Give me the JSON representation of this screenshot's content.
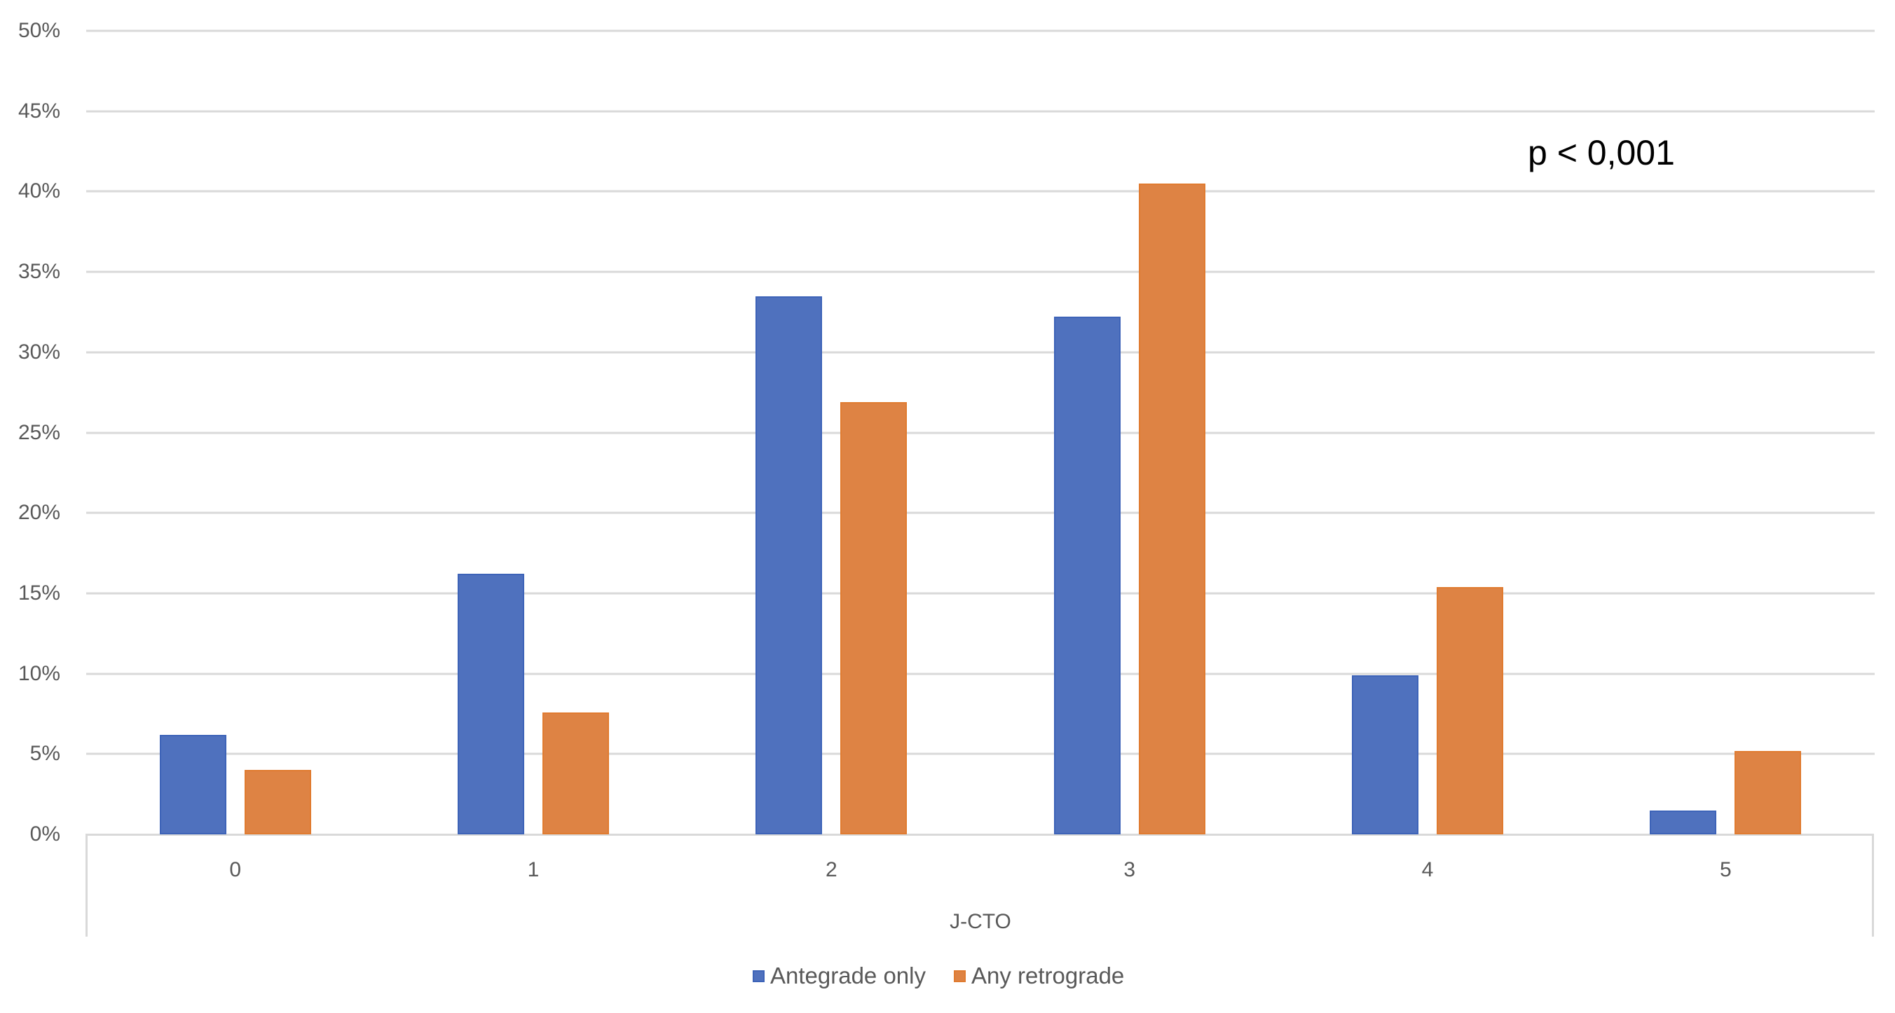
{
  "chart_data": {
    "type": "bar",
    "title": "",
    "xlabel": "J-CTO",
    "ylabel": "",
    "categories": [
      "0",
      "1",
      "2",
      "3",
      "4",
      "5"
    ],
    "series": [
      {
        "name": "Antegrade only",
        "color": "#4f71be",
        "values": [
          6.2,
          16.2,
          33.5,
          32.2,
          9.9,
          1.5
        ]
      },
      {
        "name": "Any retrograde",
        "color": "#de8344",
        "values": [
          4.0,
          7.6,
          26.9,
          40.5,
          15.4,
          5.2
        ]
      }
    ],
    "value_unit": "%",
    "ylim": [
      0,
      50
    ],
    "yticks": [
      "0%",
      "5%",
      "10%",
      "15%",
      "20%",
      "25%",
      "30%",
      "35%",
      "40%",
      "45%",
      "50%"
    ],
    "grid": true,
    "legend_position": "bottom",
    "annotations": [
      "p < 0,001"
    ]
  },
  "annotation": "p < 0,001",
  "xlabel": "J-CTO",
  "legend": {
    "items": [
      {
        "label": "Antegrade only",
        "color": "#4f71be"
      },
      {
        "label": "Any retrograde",
        "color": "#de8344"
      }
    ]
  }
}
